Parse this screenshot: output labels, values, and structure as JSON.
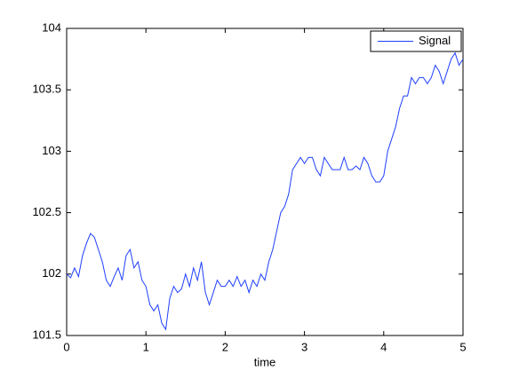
{
  "chart_data": {
    "type": "line",
    "xlabel": "time",
    "x": [
      0,
      0.05,
      0.1,
      0.15,
      0.2,
      0.25,
      0.3,
      0.35,
      0.4,
      0.45,
      0.5,
      0.55,
      0.6,
      0.65,
      0.7,
      0.75,
      0.8,
      0.85,
      0.9,
      0.95,
      1,
      1.05,
      1.1,
      1.15,
      1.2,
      1.25,
      1.3,
      1.35,
      1.4,
      1.45,
      1.5,
      1.55,
      1.6,
      1.65,
      1.7,
      1.75,
      1.8,
      1.85,
      1.9,
      1.95,
      2,
      2.05,
      2.1,
      2.15,
      2.2,
      2.25,
      2.3,
      2.35,
      2.4,
      2.45,
      2.5,
      2.55,
      2.6,
      2.65,
      2.7,
      2.75,
      2.8,
      2.85,
      2.9,
      2.95,
      3,
      3.05,
      3.1,
      3.15,
      3.2,
      3.25,
      3.3,
      3.35,
      3.4,
      3.45,
      3.5,
      3.55,
      3.6,
      3.65,
      3.7,
      3.75,
      3.8,
      3.85,
      3.9,
      3.95,
      4,
      4.05,
      4.1,
      4.15,
      4.2,
      4.25,
      4.3,
      4.35,
      4.4,
      4.45,
      4.5,
      4.55,
      4.6,
      4.65,
      4.7,
      4.75,
      4.8,
      4.85,
      4.9,
      4.95,
      5
    ],
    "series": [
      {
        "name": "Signal",
        "color": "#1f3fff",
        "values": [
          102.0,
          101.97,
          102.05,
          101.98,
          102.15,
          102.25,
          102.33,
          102.3,
          102.2,
          102.1,
          101.95,
          101.9,
          101.98,
          102.05,
          101.95,
          102.15,
          102.2,
          102.05,
          102.1,
          101.95,
          101.9,
          101.75,
          101.7,
          101.75,
          101.6,
          101.55,
          101.8,
          101.9,
          101.85,
          101.88,
          102.0,
          101.9,
          102.05,
          101.95,
          102.1,
          101.85,
          101.75,
          101.85,
          101.95,
          101.9,
          101.9,
          101.95,
          101.9,
          101.98,
          101.9,
          101.95,
          101.85,
          101.95,
          101.9,
          102.0,
          101.95,
          102.1,
          102.2,
          102.35,
          102.5,
          102.55,
          102.65,
          102.85,
          102.9,
          102.95,
          102.9,
          102.95,
          102.95,
          102.85,
          102.8,
          102.95,
          102.9,
          102.85,
          102.85,
          102.85,
          102.95,
          102.85,
          102.85,
          102.88,
          102.85,
          102.95,
          102.9,
          102.8,
          102.75,
          102.75,
          102.8,
          103.0,
          103.1,
          103.2,
          103.35,
          103.45,
          103.45,
          103.6,
          103.55,
          103.6,
          103.6,
          103.55,
          103.6,
          103.7,
          103.65,
          103.55,
          103.65,
          103.75,
          103.8,
          103.7,
          103.75
        ]
      }
    ],
    "xlim": [
      0,
      5
    ],
    "xticks": [
      0,
      1,
      2,
      3,
      4,
      5
    ],
    "ylim": [
      101.5,
      104
    ],
    "yticks": [
      101.5,
      102,
      102.5,
      103,
      103.5,
      104
    ],
    "legend": "upper right"
  }
}
